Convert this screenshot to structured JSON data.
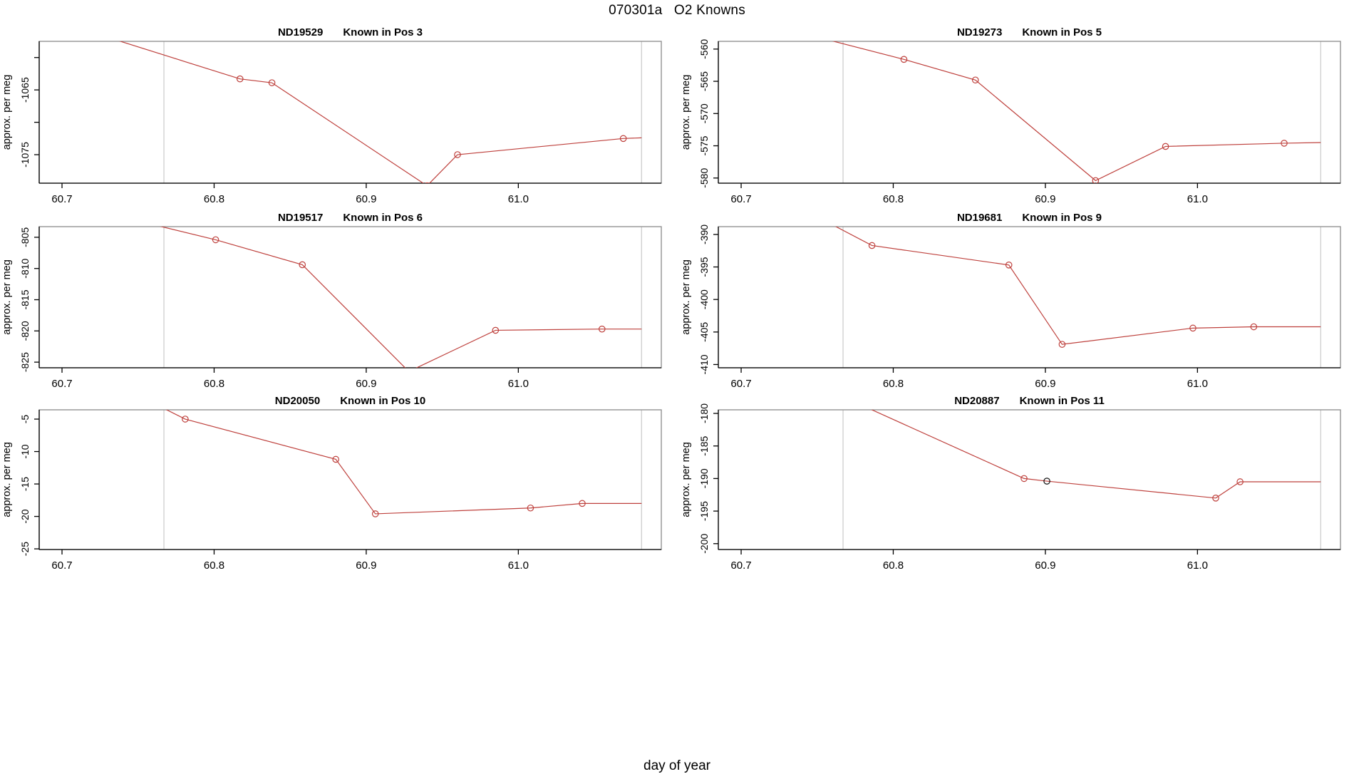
{
  "figure": {
    "title": "070301a   O2 Knowns",
    "xlabel": "day of year",
    "colors": {
      "line": "#BE403C",
      "highlight_point": "#111111",
      "session_vline": "#C9C9C9",
      "panel_box": "#8A8A8A",
      "axis": "#000000",
      "text": "#000000"
    }
  },
  "chart_data": [
    {
      "type": "line",
      "title_parts": [
        "ND19529",
        "Known in Pos 3"
      ],
      "ylabel": "approx. per meg",
      "xlim": [
        60.685,
        61.094
      ],
      "ylim": [
        -1079.4,
        -1057.5
      ],
      "xticks": [
        {
          "v": 60.7,
          "label": "60.7"
        },
        {
          "v": 60.8,
          "label": "60.8"
        },
        {
          "v": 60.9,
          "label": "60.9"
        },
        {
          "v": 61.0,
          "label": "61.0"
        }
      ],
      "yticks": [
        {
          "v": -1060,
          "label": ""
        },
        {
          "v": -1065,
          "label": "-1065"
        },
        {
          "v": -1070,
          "label": ""
        },
        {
          "v": -1075,
          "label": "-1075"
        }
      ],
      "vlines": [
        60.767,
        61.081
      ],
      "points": [
        {
          "x": 60.71,
          "y": -1055.4,
          "marker": "none"
        },
        {
          "x": 60.817,
          "y": -1063.3,
          "marker": "red"
        },
        {
          "x": 60.838,
          "y": -1063.9,
          "marker": "red"
        },
        {
          "x": 60.94,
          "y": -1079.8,
          "marker": "red"
        },
        {
          "x": 60.96,
          "y": -1075.0,
          "marker": "red"
        },
        {
          "x": 61.069,
          "y": -1072.5,
          "marker": "red"
        },
        {
          "x": 61.081,
          "y": -1072.4,
          "marker": "none"
        }
      ]
    },
    {
      "type": "line",
      "title_parts": [
        "ND19273",
        "Known in Pos 5"
      ],
      "ylabel": "approx. per meg",
      "xlim": [
        60.685,
        61.094
      ],
      "ylim": [
        -580.8,
        -558.8
      ],
      "xticks": [
        {
          "v": 60.7,
          "label": "60.7"
        },
        {
          "v": 60.8,
          "label": "60.8"
        },
        {
          "v": 60.9,
          "label": "60.9"
        },
        {
          "v": 61.0,
          "label": "61.0"
        }
      ],
      "yticks": [
        {
          "v": -560,
          "label": "-560"
        },
        {
          "v": -565,
          "label": "-565"
        },
        {
          "v": -570,
          "label": "-570"
        },
        {
          "v": -575,
          "label": "-575"
        },
        {
          "v": -580,
          "label": "-580"
        }
      ],
      "vlines": [
        60.767,
        61.081
      ],
      "points": [
        {
          "x": 60.728,
          "y": -556.8,
          "marker": "none"
        },
        {
          "x": 60.807,
          "y": -561.6,
          "marker": "red"
        },
        {
          "x": 60.854,
          "y": -564.8,
          "marker": "red"
        },
        {
          "x": 60.933,
          "y": -580.4,
          "marker": "red"
        },
        {
          "x": 60.979,
          "y": -575.1,
          "marker": "red"
        },
        {
          "x": 61.057,
          "y": -574.6,
          "marker": "red"
        },
        {
          "x": 61.081,
          "y": -574.5,
          "marker": "none"
        }
      ]
    },
    {
      "type": "line",
      "title_parts": [
        "ND19517",
        "Known in Pos 6"
      ],
      "ylabel": "approx. per meg",
      "xlim": [
        60.685,
        61.094
      ],
      "ylim": [
        -825.9,
        -803.3
      ],
      "xticks": [
        {
          "v": 60.7,
          "label": "60.7"
        },
        {
          "v": 60.8,
          "label": "60.8"
        },
        {
          "v": 60.9,
          "label": "60.9"
        },
        {
          "v": 61.0,
          "label": "61.0"
        }
      ],
      "yticks": [
        {
          "v": -805,
          "label": "-805"
        },
        {
          "v": -810,
          "label": "-810"
        },
        {
          "v": -815,
          "label": "-815"
        },
        {
          "v": -820,
          "label": "-820"
        },
        {
          "v": -825,
          "label": "-825"
        }
      ],
      "vlines": [
        60.767,
        61.081
      ],
      "points": [
        {
          "x": 60.735,
          "y": -801.5,
          "marker": "none"
        },
        {
          "x": 60.801,
          "y": -805.4,
          "marker": "red"
        },
        {
          "x": 60.858,
          "y": -809.4,
          "marker": "red"
        },
        {
          "x": 60.928,
          "y": -826.5,
          "marker": "red"
        },
        {
          "x": 60.985,
          "y": -819.9,
          "marker": "red"
        },
        {
          "x": 61.055,
          "y": -819.7,
          "marker": "red"
        },
        {
          "x": 61.081,
          "y": -819.7,
          "marker": "none"
        }
      ]
    },
    {
      "type": "line",
      "title_parts": [
        "ND19681",
        "Known in Pos 9"
      ],
      "ylabel": "approx. per meg",
      "xlim": [
        60.685,
        61.094
      ],
      "ylim": [
        -410.5,
        -388.8
      ],
      "xticks": [
        {
          "v": 60.7,
          "label": "60.7"
        },
        {
          "v": 60.8,
          "label": "60.8"
        },
        {
          "v": 60.9,
          "label": "60.9"
        },
        {
          "v": 61.0,
          "label": "61.0"
        }
      ],
      "yticks": [
        {
          "v": -390,
          "label": "-390"
        },
        {
          "v": -395,
          "label": "-395"
        },
        {
          "v": -400,
          "label": "-400"
        },
        {
          "v": -405,
          "label": "-405"
        },
        {
          "v": -410,
          "label": "-410"
        }
      ],
      "vlines": [
        60.767,
        61.081
      ],
      "points": [
        {
          "x": 60.742,
          "y": -386.3,
          "marker": "none"
        },
        {
          "x": 60.786,
          "y": -391.7,
          "marker": "red"
        },
        {
          "x": 60.876,
          "y": -394.7,
          "marker": "red"
        },
        {
          "x": 60.911,
          "y": -406.9,
          "marker": "red"
        },
        {
          "x": 60.997,
          "y": -404.4,
          "marker": "red"
        },
        {
          "x": 61.037,
          "y": -404.2,
          "marker": "red"
        },
        {
          "x": 61.081,
          "y": -404.2,
          "marker": "none"
        }
      ]
    },
    {
      "type": "line",
      "title_parts": [
        "ND20050",
        "Known in Pos 10"
      ],
      "ylabel": "approx. per meg",
      "xlim": [
        60.685,
        61.094
      ],
      "ylim": [
        -25.1,
        -3.57
      ],
      "xticks": [
        {
          "v": 60.7,
          "label": "60.7"
        },
        {
          "v": 60.8,
          "label": "60.8"
        },
        {
          "v": 60.9,
          "label": "60.9"
        },
        {
          "v": 61.0,
          "label": "61.0"
        }
      ],
      "yticks": [
        {
          "v": -5,
          "label": "-5"
        },
        {
          "v": -10,
          "label": "-10"
        },
        {
          "v": -15,
          "label": "-15"
        },
        {
          "v": -20,
          "label": "-20"
        },
        {
          "v": -25,
          "label": "-25"
        }
      ],
      "vlines": [
        60.767,
        61.081
      ],
      "points": [
        {
          "x": 60.752,
          "y": -1.6,
          "marker": "none"
        },
        {
          "x": 60.781,
          "y": -5.0,
          "marker": "red"
        },
        {
          "x": 60.88,
          "y": -11.2,
          "marker": "red"
        },
        {
          "x": 60.906,
          "y": -19.6,
          "marker": "red"
        },
        {
          "x": 61.008,
          "y": -18.7,
          "marker": "red"
        },
        {
          "x": 61.042,
          "y": -18.0,
          "marker": "red"
        },
        {
          "x": 61.081,
          "y": -18.0,
          "marker": "none"
        }
      ]
    },
    {
      "type": "line",
      "title_parts": [
        "ND20887",
        "Known in Pos 11"
      ],
      "ylabel": "approx. per meg",
      "xlim": [
        60.685,
        61.094
      ],
      "ylim": [
        -200.9,
        -179.45
      ],
      "xticks": [
        {
          "v": 60.7,
          "label": "60.7"
        },
        {
          "v": 60.8,
          "label": "60.8"
        },
        {
          "v": 60.9,
          "label": "60.9"
        },
        {
          "v": 61.0,
          "label": "61.0"
        }
      ],
      "yticks": [
        {
          "v": -180,
          "label": "-180"
        },
        {
          "v": -185,
          "label": "-185"
        },
        {
          "v": -190,
          "label": "-190"
        },
        {
          "v": -195,
          "label": "-195"
        },
        {
          "v": -200,
          "label": "-200"
        }
      ],
      "vlines": [
        60.767,
        61.081
      ],
      "points": [
        {
          "x": 60.758,
          "y": -176.5,
          "marker": "none"
        },
        {
          "x": 60.886,
          "y": -190.0,
          "marker": "red"
        },
        {
          "x": 60.901,
          "y": -190.4,
          "marker": "black"
        },
        {
          "x": 61.012,
          "y": -193.0,
          "marker": "red"
        },
        {
          "x": 61.028,
          "y": -190.5,
          "marker": "red"
        },
        {
          "x": 61.081,
          "y": -190.5,
          "marker": "none"
        }
      ]
    }
  ]
}
